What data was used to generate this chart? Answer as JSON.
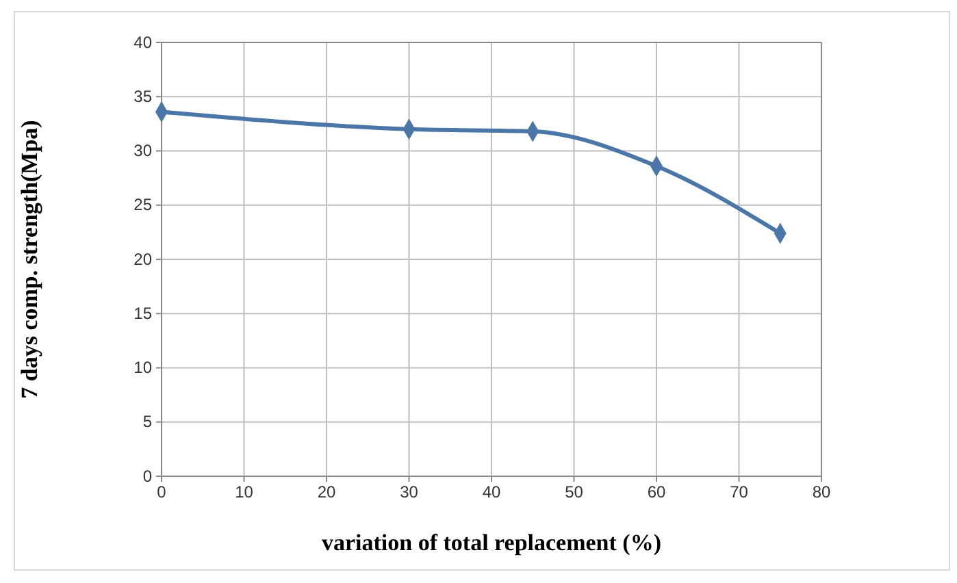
{
  "chart_data": {
    "type": "line",
    "xlabel": "variation of total replacement (%)",
    "ylabel": "7 days comp. strength(Mpa)",
    "x": [
      0,
      30,
      45,
      60,
      75
    ],
    "series": [
      {
        "color": "#4a76a8",
        "values": [
          33.6,
          32.0,
          31.8,
          28.6,
          22.4
        ]
      }
    ],
    "xlim": [
      0,
      80
    ],
    "xticks": [
      0,
      10,
      20,
      30,
      40,
      50,
      60,
      70,
      80
    ],
    "ylim": [
      0,
      40
    ],
    "yticks": [
      0,
      5,
      10,
      15,
      20,
      25,
      30,
      35,
      40
    ],
    "grid": true,
    "marker": "diamond",
    "line_style": "solid"
  }
}
